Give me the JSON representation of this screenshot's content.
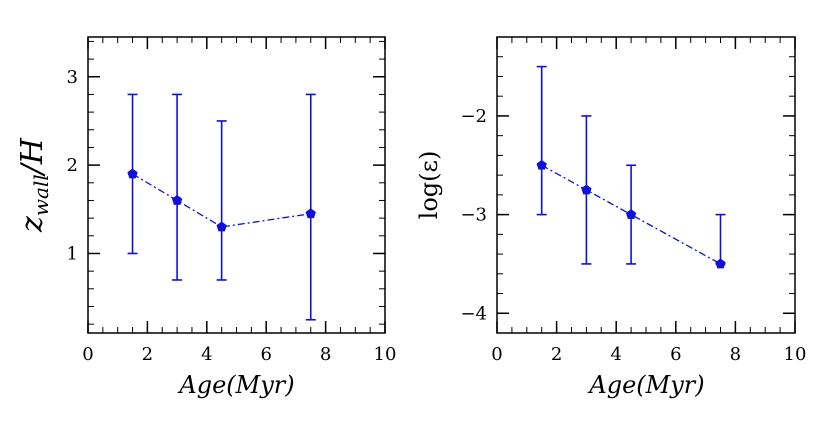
{
  "chart_data": [
    {
      "type": "line",
      "xlabel": "Age(Myr)",
      "ylabel": "z_wall/H",
      "ylabel_main": "z",
      "ylabel_sub": "wall",
      "ylabel_tail": "/H",
      "xlim": [
        0,
        10
      ],
      "ylim": [
        0.1,
        3.45
      ],
      "xticks": [
        0,
        2,
        4,
        6,
        8,
        10
      ],
      "xtick_labels": [
        "0",
        "2",
        "4",
        "6",
        "8",
        "10"
      ],
      "yticks": [
        1,
        2,
        3
      ],
      "ytick_labels": [
        "1",
        "2",
        "3"
      ],
      "x_minor_step": 0.5,
      "y_minor_step": 0.2,
      "series": [
        {
          "name": "z_wall/H",
          "color": "#1010d8",
          "x": [
            1.5,
            3.0,
            4.5,
            7.5
          ],
          "y": [
            1.9,
            1.6,
            1.3,
            1.45
          ],
          "yerr_low": [
            1.0,
            0.7,
            0.7,
            0.25
          ],
          "yerr_high": [
            2.8,
            2.8,
            2.5,
            2.8
          ]
        }
      ]
    },
    {
      "type": "line",
      "xlabel": "Age(Myr)",
      "ylabel": "log(ε)",
      "xlim": [
        0,
        10
      ],
      "ylim": [
        -4.2,
        -1.2
      ],
      "xticks": [
        0,
        2,
        4,
        6,
        8,
        10
      ],
      "xtick_labels": [
        "0",
        "2",
        "4",
        "6",
        "8",
        "10"
      ],
      "yticks": [
        -4,
        -3,
        -2
      ],
      "ytick_labels": [
        "−4",
        "−3",
        "−2"
      ],
      "x_minor_step": 0.5,
      "y_minor_step": 0.2,
      "series": [
        {
          "name": "log(ε)",
          "color": "#1010d8",
          "x": [
            1.5,
            3.0,
            4.5,
            7.5
          ],
          "y": [
            -2.5,
            -2.75,
            -3.0,
            -3.5
          ],
          "yerr_low": [
            -3.0,
            -3.5,
            -3.5,
            -3.5
          ],
          "yerr_high": [
            -1.5,
            -2.0,
            -2.5,
            -3.0
          ]
        }
      ]
    }
  ]
}
